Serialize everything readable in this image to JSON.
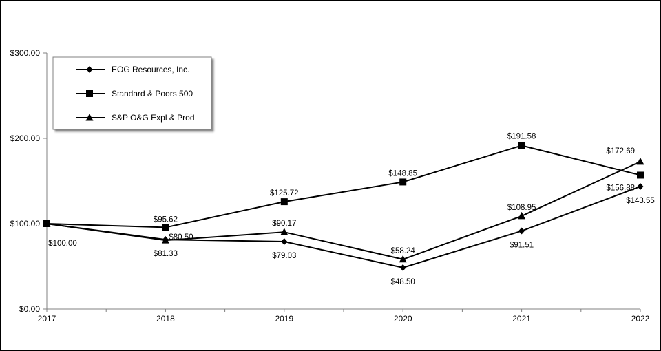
{
  "chart_data": {
    "type": "line",
    "title": "",
    "xlabel": "",
    "ylabel": "",
    "x": [
      "2017",
      "2018",
      "2019",
      "2020",
      "2021",
      "2022"
    ],
    "ylim": [
      0,
      300
    ],
    "y_ticks": [
      "$0.00",
      "$100.00",
      "$200.00",
      "$300.00"
    ],
    "grid": false,
    "legend_position": "top-left",
    "series": [
      {
        "name": "EOG Resources, Inc.",
        "marker": "diamond",
        "values": [
          100.0,
          81.33,
          79.03,
          48.5,
          91.51,
          143.55
        ],
        "labels": [
          "$100.00",
          "$81.33",
          "$79.03",
          "$48.50",
          "$91.51",
          "$143.55"
        ]
      },
      {
        "name": "Standard & Poors 500",
        "marker": "square",
        "values": [
          100.0,
          95.62,
          125.72,
          148.85,
          191.58,
          156.88
        ],
        "labels": [
          "",
          "$95.62",
          "$125.72",
          "$148.85",
          "$191.58",
          "$156.88"
        ]
      },
      {
        "name": "S&P O&G Expl & Prod",
        "marker": "triangle",
        "values": [
          100.0,
          80.5,
          90.17,
          58.24,
          108.95,
          172.69
        ],
        "labels": [
          "",
          "$80.50",
          "$90.17",
          "$58.24",
          "$108.95",
          "$172.69"
        ]
      }
    ],
    "colors": {
      "line": "#000000",
      "axis": "#808080",
      "legend_border": "#808080"
    }
  }
}
